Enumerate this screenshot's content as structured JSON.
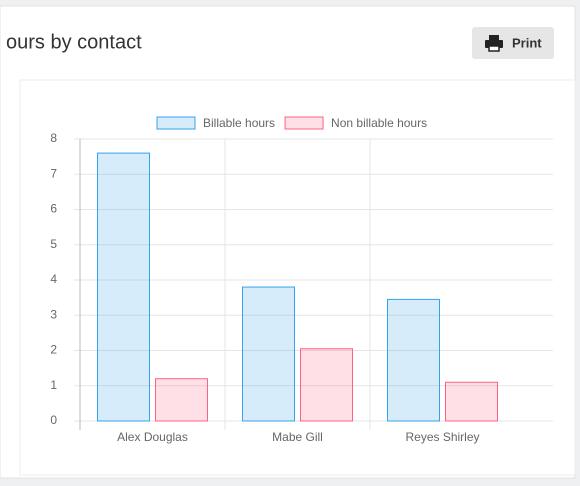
{
  "header": {
    "title": "ours by contact",
    "button": "Print"
  },
  "chart_data": {
    "type": "bar",
    "categories": [
      "Alex Douglas",
      "Mabe Gill",
      "Reyes Shirley"
    ],
    "series": [
      {
        "name": "Billable hours",
        "color": "#36a2eb",
        "values": [
          7.6,
          3.8,
          3.45
        ]
      },
      {
        "name": "Non billable hours",
        "color": "#ff6384",
        "values": [
          1.2,
          2.05,
          1.1
        ]
      }
    ],
    "ylim": [
      0,
      8
    ],
    "yticks": [
      0,
      1,
      2,
      3,
      4,
      5,
      6,
      7,
      8
    ],
    "grid": true,
    "legend": "top"
  }
}
